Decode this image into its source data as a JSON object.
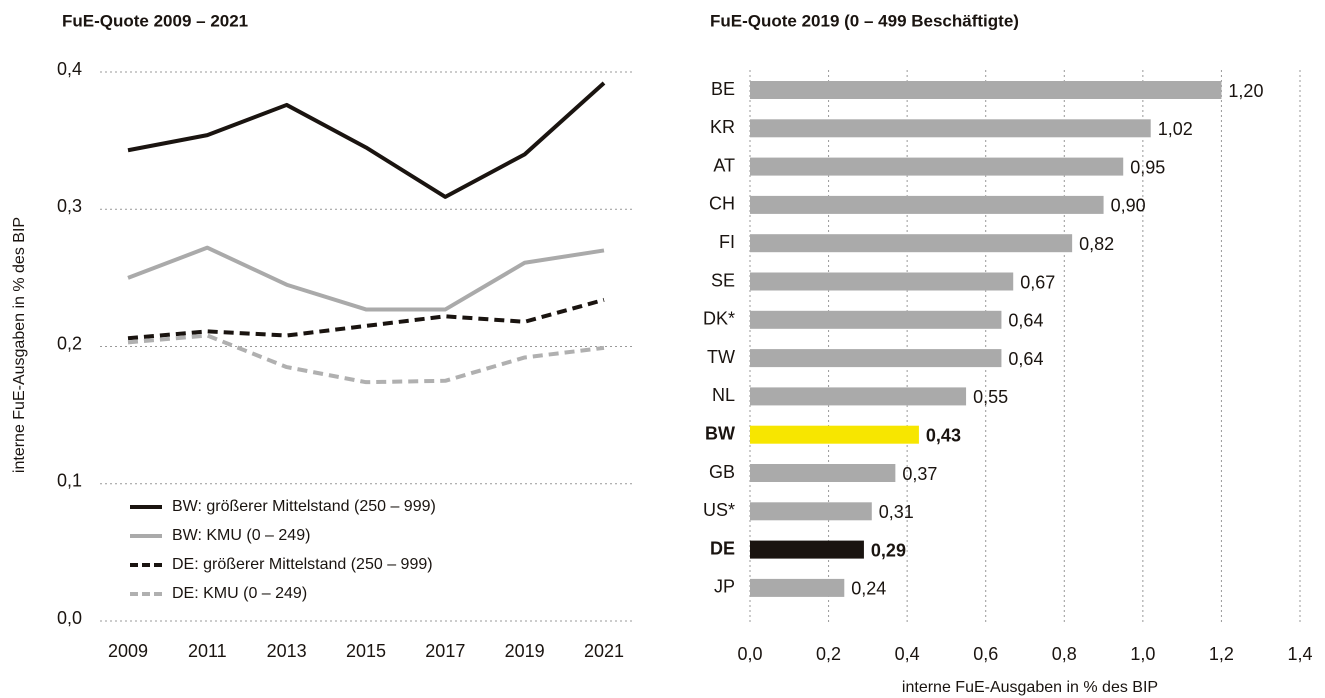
{
  "chart_data": [
    {
      "type": "line",
      "title": "FuE-Quote 2009 – 2021",
      "ylabel": "interne FuE-Ausgaben in % des BIP",
      "categories": [
        "2009",
        "2011",
        "2013",
        "2015",
        "2017",
        "2019",
        "2021"
      ],
      "series": [
        {
          "name": "BW: größerer Mittelstand (250 – 999)",
          "color": "#1a1410",
          "dashed": false,
          "values": [
            0.343,
            0.354,
            0.376,
            0.345,
            0.309,
            0.34,
            0.392
          ]
        },
        {
          "name": "BW: KMU (0 – 249)",
          "color": "#aaaaaa",
          "dashed": false,
          "values": [
            0.25,
            0.272,
            0.245,
            0.227,
            0.227,
            0.261,
            0.27
          ]
        },
        {
          "name": "DE: größerer Mittelstand (250 – 999)",
          "color": "#1a1410",
          "dashed": true,
          "values": [
            0.206,
            0.211,
            0.208,
            0.215,
            0.222,
            0.218,
            0.234
          ]
        },
        {
          "name": "DE: KMU (0 – 249)",
          "color": "#b0b0b0",
          "dashed": true,
          "values": [
            0.203,
            0.208,
            0.185,
            0.174,
            0.175,
            0.192,
            0.199
          ]
        }
      ],
      "ylim": [
        0,
        0.4
      ],
      "yticks": [
        {
          "value": 0,
          "label": "0,0"
        },
        {
          "value": 0.1,
          "label": "0,1"
        },
        {
          "value": 0.2,
          "label": "0,2"
        },
        {
          "value": 0.3,
          "label": "0,3"
        },
        {
          "value": 0.4,
          "label": "0,4"
        }
      ],
      "grid": true,
      "legend": "bottom-left"
    },
    {
      "type": "hbar",
      "title": "FuE-Quote 2019 (0 – 499 Beschäftigte)",
      "xlabel": "interne FuE-Ausgaben in % des BIP",
      "categories": [
        "BE",
        "KR",
        "AT",
        "CH",
        "FI",
        "SE",
        "DK*",
        "TW",
        "NL",
        "BW",
        "GB",
        "US*",
        "DE",
        "JP"
      ],
      "values": [
        1.2,
        1.02,
        0.95,
        0.9,
        0.82,
        0.67,
        0.64,
        0.64,
        0.55,
        0.43,
        0.37,
        0.31,
        0.29,
        0.24
      ],
      "value_labels": [
        "1,20",
        "1,02",
        "0,95",
        "0,90",
        "0,82",
        "0,67",
        "0,64",
        "0,64",
        "0,55",
        "0,43",
        "0,37",
        "0,31",
        "0,29",
        "0,24"
      ],
      "color": "#aaaaaa",
      "colors": [
        "#aaaaaa",
        "#aaaaaa",
        "#aaaaaa",
        "#aaaaaa",
        "#aaaaaa",
        "#aaaaaa",
        "#aaaaaa",
        "#aaaaaa",
        "#aaaaaa",
        "#f7e600",
        "#aaaaaa",
        "#aaaaaa",
        "#1a1410",
        "#aaaaaa"
      ],
      "xlim": [
        0,
        1.4
      ],
      "xticks": [
        {
          "value": 0,
          "label": "0,0"
        },
        {
          "value": 0.2,
          "label": "0,2"
        },
        {
          "value": 0.4,
          "label": "0,4"
        },
        {
          "value": 0.6,
          "label": "0,6"
        },
        {
          "value": 0.8,
          "label": "0,8"
        },
        {
          "value": 1.0,
          "label": "1,0"
        },
        {
          "value": 1.2,
          "label": "1,2"
        },
        {
          "value": 1.4,
          "label": "1,4"
        }
      ],
      "grid": true
    }
  ]
}
